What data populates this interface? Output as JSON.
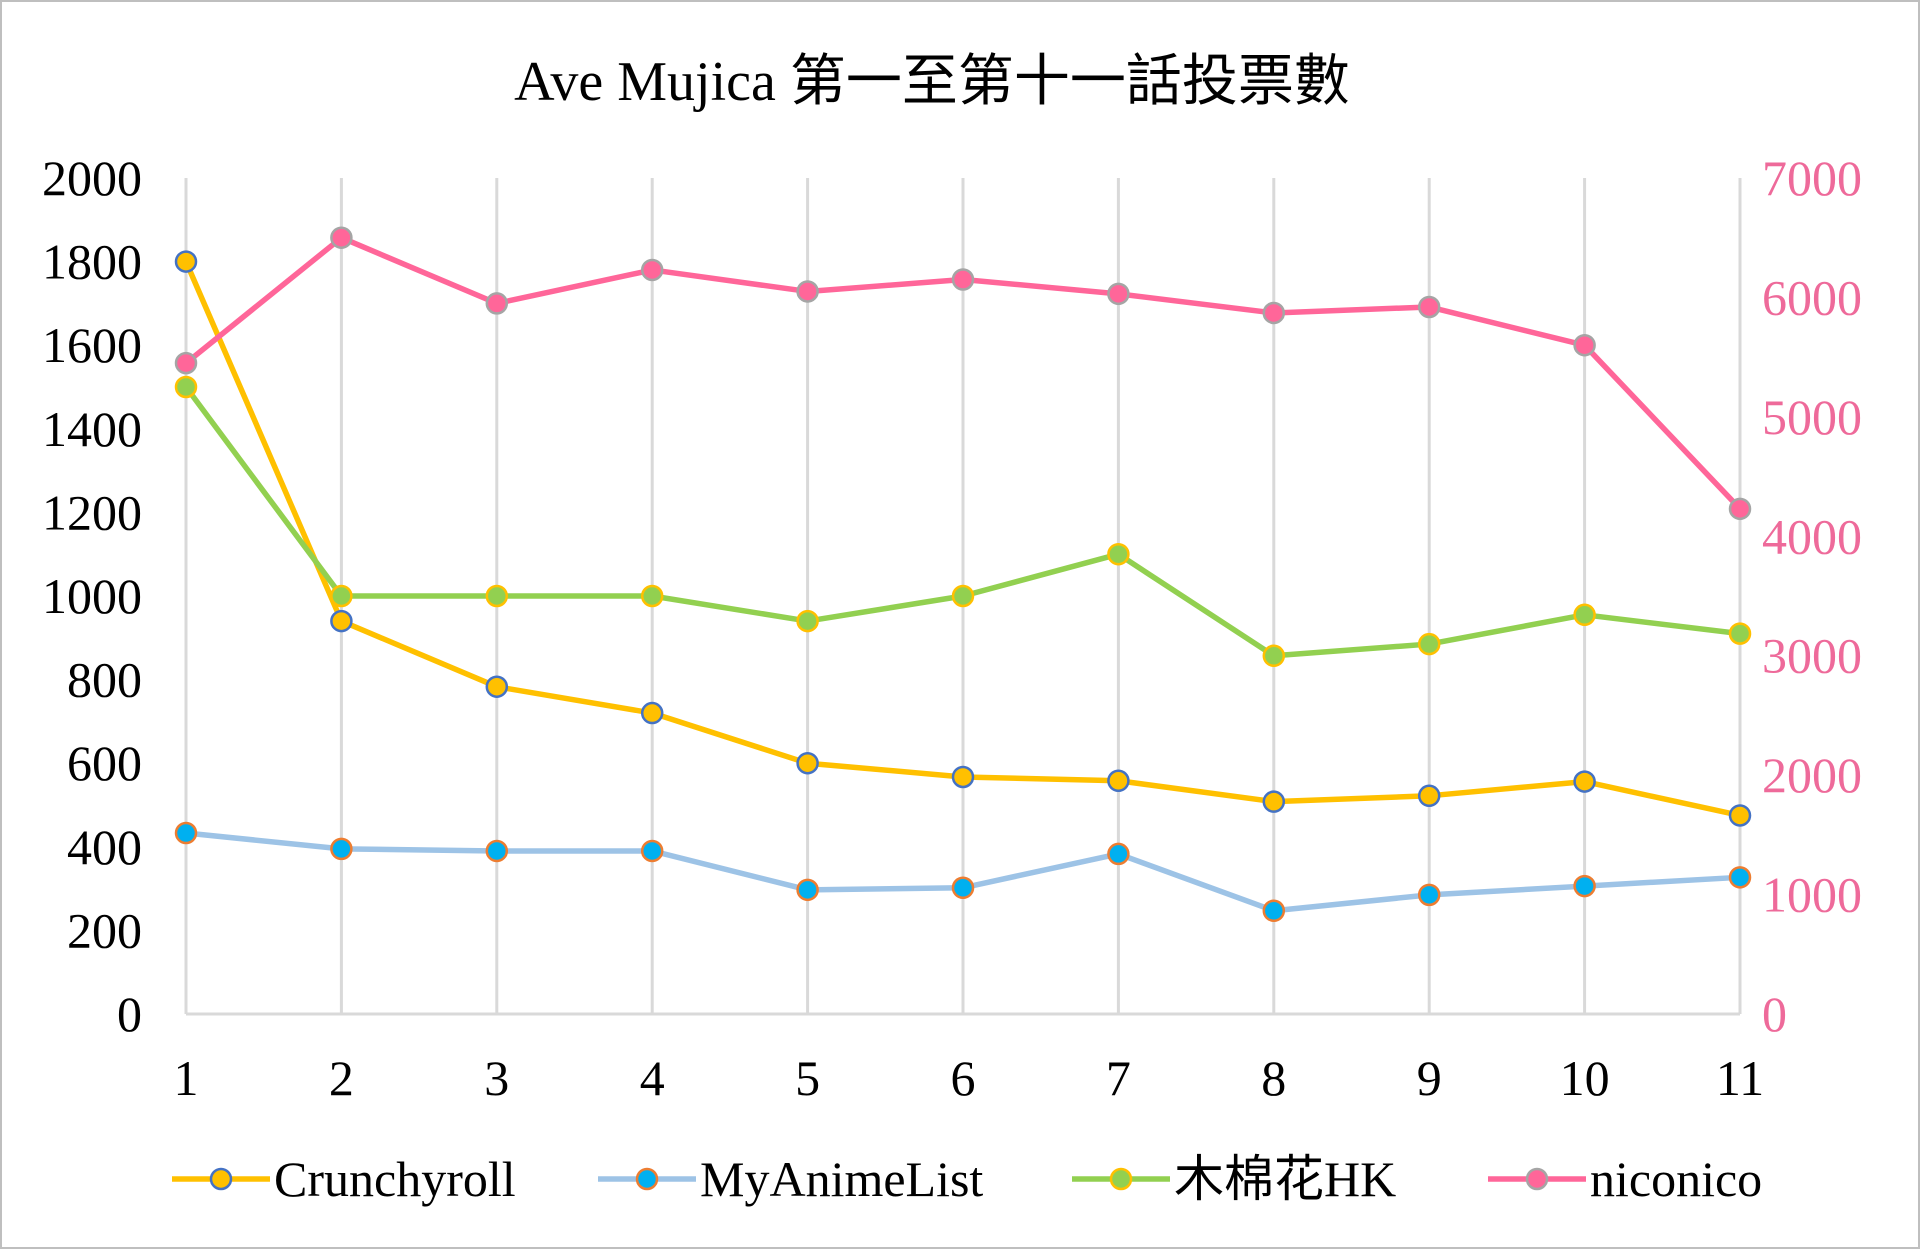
{
  "chart_data": {
    "type": "line",
    "title": "Ave Mujica 第一至第十一話投票數",
    "x": [
      "1",
      "2",
      "3",
      "4",
      "5",
      "6",
      "7",
      "8",
      "9",
      "10",
      "11"
    ],
    "y_left": {
      "ylim": [
        0,
        2000
      ],
      "ticks": [
        "0",
        "200",
        "400",
        "600",
        "800",
        "1000",
        "1200",
        "1400",
        "1600",
        "1800",
        "2000"
      ]
    },
    "y_right": {
      "ylim": [
        0,
        7000
      ],
      "ticks": [
        "0",
        "1000",
        "2000",
        "3000",
        "4000",
        "5000",
        "6000",
        "7000"
      ]
    },
    "grid": "vertical",
    "legend_position": "bottom",
    "series": [
      {
        "name": "Crunchyroll",
        "axis": "left",
        "line_color": "#ffc000",
        "marker_fill": "#ffc000",
        "marker_edge": "#4472c4",
        "values": [
          1800,
          940,
          783,
          720,
          600,
          567,
          558,
          508,
          522,
          556,
          475
        ]
      },
      {
        "name": "MyAnimeList",
        "axis": "left",
        "line_color": "#9dc3e6",
        "marker_fill": "#00b0f0",
        "marker_edge": "#ed7d31",
        "values": [
          433,
          395,
          390,
          390,
          297,
          302,
          383,
          247,
          285,
          306,
          327
        ]
      },
      {
        "name": "木棉花HK",
        "axis": "left",
        "line_color": "#92d050",
        "marker_fill": "#92d050",
        "marker_edge": "#ffc000",
        "values": [
          1500,
          1000,
          1000,
          1000,
          940,
          1000,
          1100,
          857,
          885,
          955,
          910
        ]
      },
      {
        "name": "niconico",
        "axis": "right",
        "line_color": "#ff6699",
        "marker_fill": "#ff6699",
        "marker_edge": "#a5a5a5",
        "values": [
          5450,
          6500,
          5950,
          6230,
          6050,
          6150,
          6030,
          5870,
          5920,
          5600,
          4230
        ]
      }
    ]
  }
}
